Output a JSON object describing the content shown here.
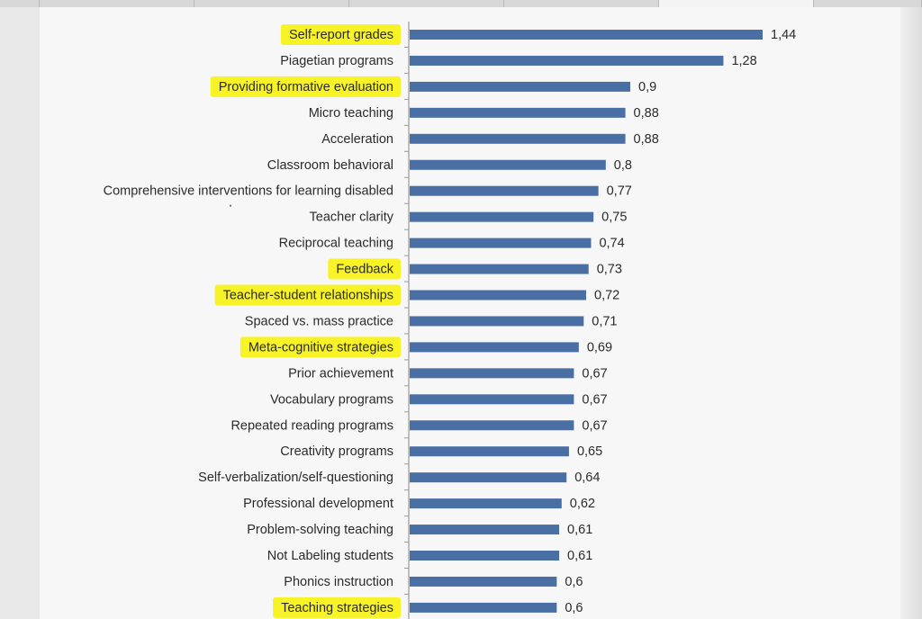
{
  "chart_data": {
    "type": "bar",
    "orientation": "horizontal",
    "title": "",
    "xlabel": "",
    "ylabel": "",
    "xlim": [
      0,
      1.5
    ],
    "grid": false,
    "legend": "none",
    "bar_color": "#4a6fa5",
    "highlight_color": "#f7f21a",
    "categories": [
      "Self-report grades",
      "Piagetian programs",
      "Providing formative evaluation",
      "Micro teaching",
      "Acceleration",
      "Classroom behavioral",
      "Comprehensive interventions for learning disabled",
      "Teacher clarity",
      "Reciprocal teaching",
      "Feedback",
      "Teacher-student relationships",
      "Spaced vs. mass practice",
      "Meta-cognitive strategies",
      "Prior achievement",
      "Vocabulary programs",
      "Repeated reading programs",
      "Creativity programs",
      "Self-verbalization/self-questioning",
      "Professional development",
      "Problem-solving teaching",
      "Not Labeling students",
      "Phonics instruction",
      "Teaching strategies"
    ],
    "values": [
      1.44,
      1.28,
      0.9,
      0.88,
      0.88,
      0.8,
      0.77,
      0.75,
      0.74,
      0.73,
      0.72,
      0.71,
      0.69,
      0.67,
      0.67,
      0.67,
      0.65,
      0.64,
      0.62,
      0.61,
      0.61,
      0.6,
      0.6
    ],
    "value_labels": [
      "1,44",
      "1,28",
      "0,9",
      "0,88",
      "0,88",
      "0,8",
      "0,77",
      "0,75",
      "0,74",
      "0,73",
      "0,72",
      "0,71",
      "0,69",
      "0,67",
      "0,67",
      "0,67",
      "0,65",
      "0,64",
      "0,62",
      "0,61",
      "0,61",
      "0,6",
      "0,6"
    ],
    "highlighted": [
      true,
      false,
      true,
      false,
      false,
      false,
      false,
      false,
      false,
      true,
      true,
      false,
      true,
      false,
      false,
      false,
      false,
      false,
      false,
      false,
      false,
      false,
      true
    ]
  }
}
